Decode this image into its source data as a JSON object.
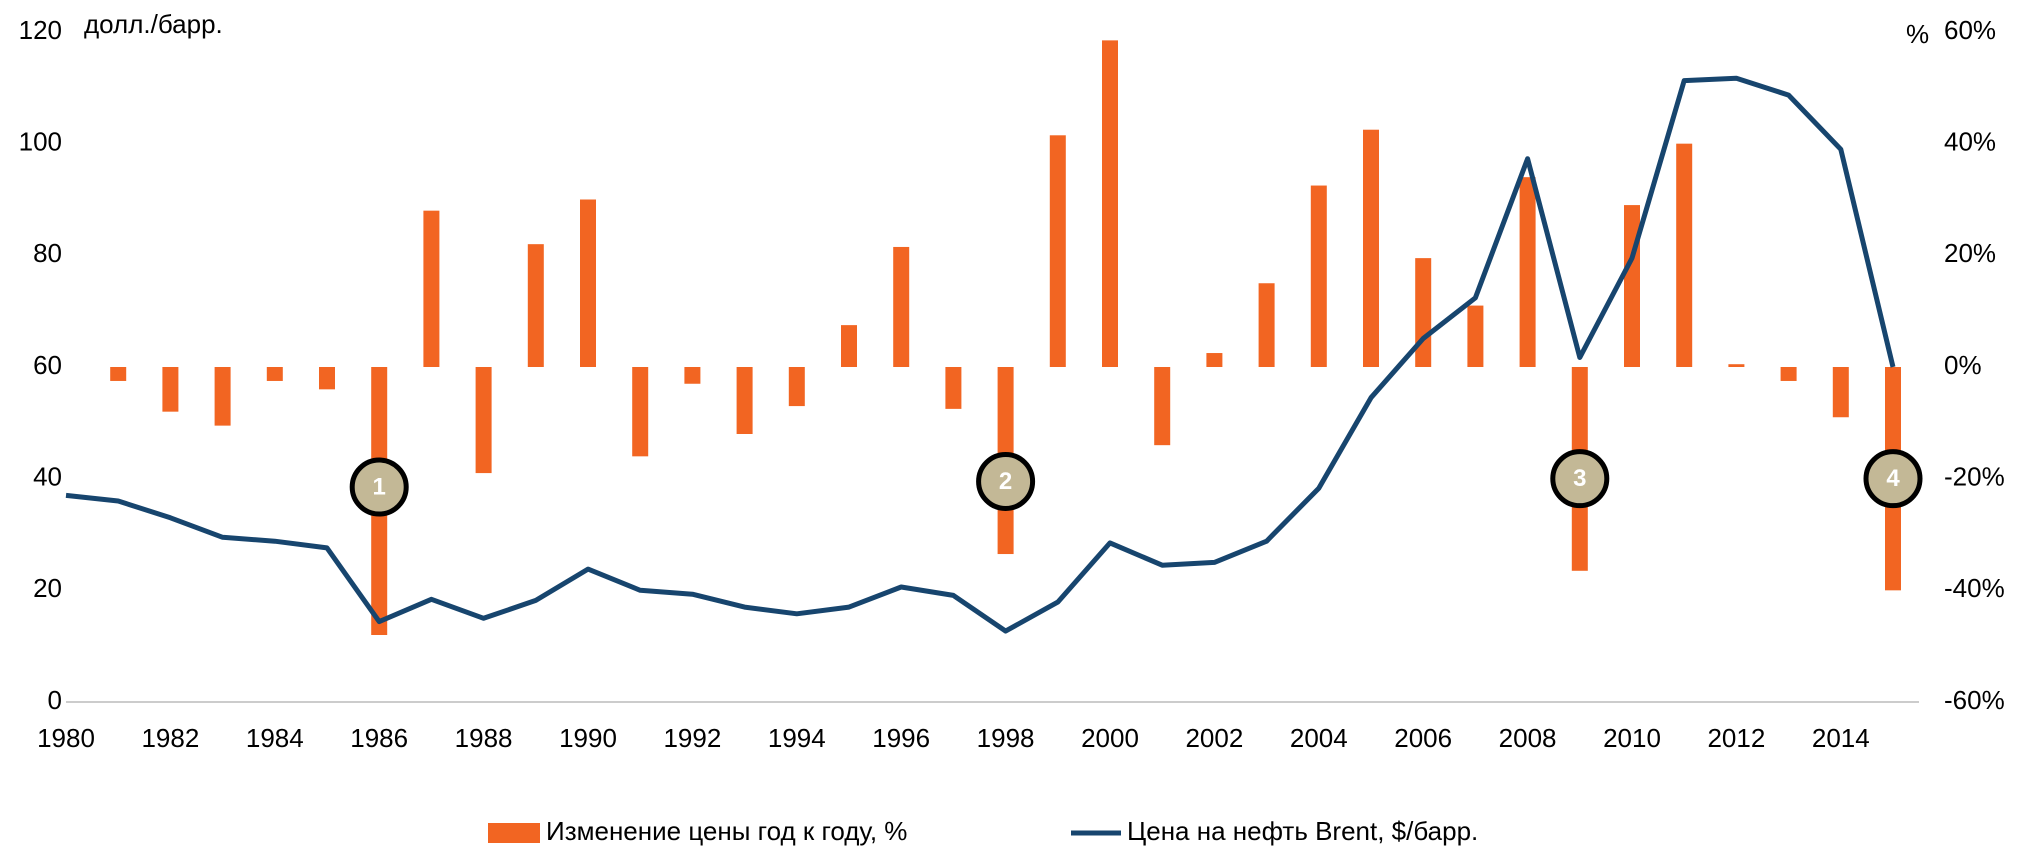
{
  "chart_data": {
    "type": "bar-line",
    "y_label": "долл./барр.",
    "y2_label": "%",
    "x": [
      1980,
      1981,
      1982,
      1983,
      1984,
      1985,
      1986,
      1987,
      1988,
      1989,
      1990,
      1991,
      1992,
      1993,
      1994,
      1995,
      1996,
      1997,
      1998,
      1999,
      2000,
      2001,
      2002,
      2003,
      2004,
      2005,
      2006,
      2007,
      2008,
      2009,
      2010,
      2011,
      2012,
      2013,
      2014,
      2015
    ],
    "xlim": [
      1980,
      2015
    ],
    "xticks": [
      1980,
      1982,
      1984,
      1986,
      1988,
      1990,
      1992,
      1994,
      1996,
      1998,
      2000,
      2002,
      2004,
      2006,
      2008,
      2010,
      2012,
      2014
    ],
    "ylim": [
      0,
      120
    ],
    "yticks": [
      0,
      20,
      40,
      60,
      80,
      100,
      120
    ],
    "y2lim": [
      -60,
      60
    ],
    "y2ticks": [
      {
        "value": -60,
        "label": "-60%"
      },
      {
        "value": -40,
        "label": "-40%"
      },
      {
        "value": -20,
        "label": "-20%"
      },
      {
        "value": 0,
        "label": "0%"
      },
      {
        "value": 20,
        "label": "20%"
      },
      {
        "value": 40,
        "label": "40%"
      },
      {
        "value": 60,
        "label": "60%"
      }
    ],
    "series": [
      {
        "name": "Изменение цены год к году, %",
        "color": "#f26522",
        "type": "bar",
        "axis": "y2",
        "values": [
          null,
          -2.5,
          -8,
          -10.5,
          -2.5,
          -4,
          -48,
          28,
          -19,
          22,
          30,
          -16,
          -3,
          -12,
          -7,
          7.5,
          21.5,
          -7.5,
          -33.5,
          41.5,
          58.5,
          -14,
          2.5,
          15,
          32.5,
          42.5,
          19.5,
          11,
          34,
          -36.5,
          29,
          40,
          0.5,
          -2.5,
          -9,
          -40
        ]
      },
      {
        "name": "Цена на нефть Brent, $/барр.",
        "color": "#17456e",
        "type": "line",
        "axis": "y",
        "values": [
          37,
          36,
          33,
          29.5,
          28.8,
          27.6,
          14.4,
          18.4,
          15,
          18.2,
          23.8,
          20,
          19.3,
          17,
          15.8,
          17,
          20.6,
          19.1,
          12.7,
          17.9,
          28.5,
          24.5,
          25,
          28.8,
          38.3,
          54.5,
          65.1,
          72.4,
          97.3,
          61.7,
          79.5,
          111.3,
          111.7,
          108.7,
          99,
          60
        ]
      }
    ],
    "annotations": [
      {
        "label": "1",
        "x": 1986,
        "y": 38.5
      },
      {
        "label": "2",
        "x": 1998,
        "y": 39.5
      },
      {
        "label": "3",
        "x": 2009,
        "y": 40
      },
      {
        "label": "4",
        "x": 2015,
        "y": 40
      }
    ]
  }
}
